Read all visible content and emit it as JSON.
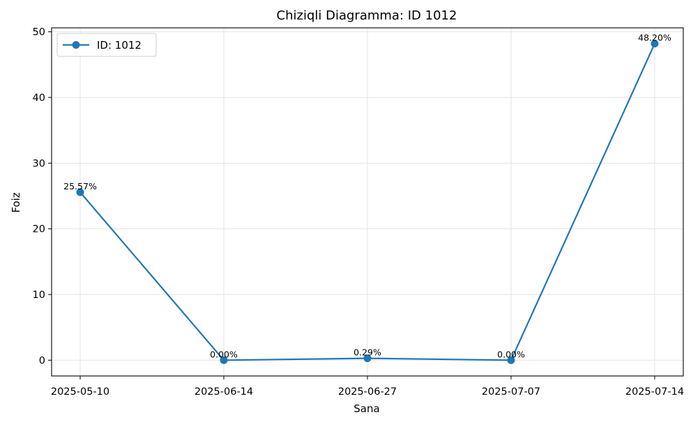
{
  "chart_data": {
    "type": "line",
    "title": "Chiziqli Diagramma: ID 1012",
    "xlabel": "Sana",
    "ylabel": "Foiz",
    "categories": [
      "2025-05-10",
      "2025-06-14",
      "2025-06-27",
      "2025-07-07",
      "2025-07-14"
    ],
    "series": [
      {
        "name": "ID: 1012",
        "values": [
          25.57,
          0.0,
          0.29,
          0.0,
          48.2
        ],
        "labels": [
          "25.57%",
          "0.00%",
          "0.29%",
          "0.00%",
          "48.20%"
        ],
        "color": "#1f77b4"
      }
    ],
    "ylim": [
      -2.4,
      50.6
    ],
    "yticks": [
      0,
      10,
      20,
      30,
      40,
      50
    ],
    "grid": true,
    "legend": "top-left"
  }
}
